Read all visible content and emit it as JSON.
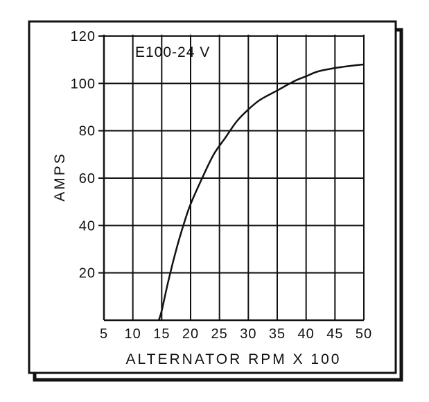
{
  "chart_data": {
    "type": "line",
    "title": "",
    "annotation": "E100-24 V",
    "xlabel": "ALTERNATOR RPM X 100",
    "ylabel": "AMPS",
    "xlim": [
      5,
      50
    ],
    "ylim": [
      0,
      120
    ],
    "x_ticks": [
      5,
      10,
      15,
      20,
      25,
      30,
      35,
      40,
      45,
      50
    ],
    "y_ticks": [
      20,
      40,
      60,
      80,
      100,
      120
    ],
    "grid": true,
    "legend": "none",
    "series": [
      {
        "x": [
          14.5,
          15,
          16,
          17,
          18,
          19,
          20,
          22,
          24,
          26,
          28,
          30,
          32,
          35,
          38,
          40,
          42,
          45,
          48,
          50
        ],
        "y": [
          0,
          4,
          15,
          25,
          34,
          42,
          49,
          60,
          70,
          77,
          84,
          89,
          93,
          97,
          101,
          103,
          105,
          106.5,
          107.5,
          108
        ]
      }
    ]
  }
}
